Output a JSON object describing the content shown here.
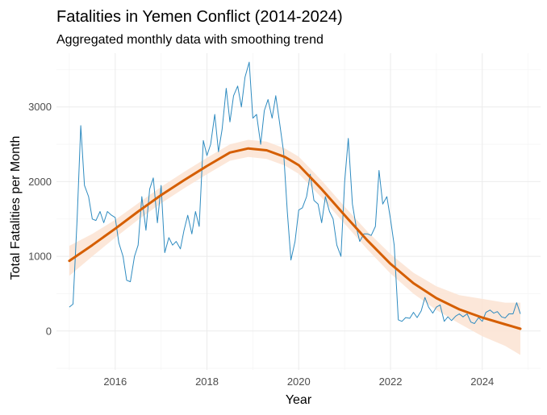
{
  "chart_data": {
    "type": "line",
    "title": "Fatalities in Yemen Conflict (2014-2024)",
    "subtitle": "Aggregated monthly data with smoothing trend",
    "xlabel": "Year",
    "ylabel": "Total Fatalities per Month",
    "xlim": [
      2014.72,
      2025.27
    ],
    "ylim": [
      -520,
      3720
    ],
    "x_ticks": [
      2016,
      2018,
      2020,
      2022,
      2024
    ],
    "y_ticks": [
      0,
      1000,
      2000,
      3000
    ],
    "grid": true,
    "colors": {
      "raw": "#2e8bc0",
      "trend": "#d55e00",
      "band": "#fbe3d2"
    },
    "series": [
      {
        "values": [
          [
            2015.0,
            320
          ],
          [
            2015.08,
            360
          ],
          [
            2015.17,
            1500
          ],
          [
            2015.25,
            2750
          ],
          [
            2015.33,
            1950
          ],
          [
            2015.42,
            1800
          ],
          [
            2015.5,
            1500
          ],
          [
            2015.58,
            1480
          ],
          [
            2015.67,
            1600
          ],
          [
            2015.75,
            1450
          ],
          [
            2015.83,
            1600
          ],
          [
            2015.92,
            1550
          ],
          [
            2016.0,
            1520
          ],
          [
            2016.08,
            1180
          ],
          [
            2016.17,
            1000
          ],
          [
            2016.25,
            680
          ],
          [
            2016.33,
            660
          ],
          [
            2016.42,
            1000
          ],
          [
            2016.5,
            1150
          ],
          [
            2016.58,
            1800
          ],
          [
            2016.67,
            1350
          ],
          [
            2016.75,
            1900
          ],
          [
            2016.83,
            2050
          ],
          [
            2016.92,
            1450
          ],
          [
            2017.0,
            1950
          ],
          [
            2017.08,
            1050
          ],
          [
            2017.17,
            1250
          ],
          [
            2017.25,
            1150
          ],
          [
            2017.33,
            1200
          ],
          [
            2017.42,
            1100
          ],
          [
            2017.5,
            1350
          ],
          [
            2017.58,
            1550
          ],
          [
            2017.67,
            1300
          ],
          [
            2017.75,
            1600
          ],
          [
            2017.83,
            1400
          ],
          [
            2017.92,
            2550
          ],
          [
            2018.0,
            2350
          ],
          [
            2018.08,
            2500
          ],
          [
            2018.17,
            2900
          ],
          [
            2018.25,
            2400
          ],
          [
            2018.33,
            2700
          ],
          [
            2018.42,
            3250
          ],
          [
            2018.5,
            2800
          ],
          [
            2018.58,
            3150
          ],
          [
            2018.67,
            3280
          ],
          [
            2018.75,
            3000
          ],
          [
            2018.83,
            3400
          ],
          [
            2018.92,
            3600
          ],
          [
            2019.0,
            2850
          ],
          [
            2019.08,
            2900
          ],
          [
            2019.17,
            2500
          ],
          [
            2019.25,
            2950
          ],
          [
            2019.33,
            3100
          ],
          [
            2019.42,
            2850
          ],
          [
            2019.5,
            3150
          ],
          [
            2019.58,
            2800
          ],
          [
            2019.67,
            2400
          ],
          [
            2019.75,
            1600
          ],
          [
            2019.83,
            950
          ],
          [
            2019.92,
            1200
          ],
          [
            2020.0,
            1620
          ],
          [
            2020.08,
            1650
          ],
          [
            2020.17,
            1800
          ],
          [
            2020.25,
            2100
          ],
          [
            2020.33,
            1750
          ],
          [
            2020.42,
            1700
          ],
          [
            2020.5,
            1450
          ],
          [
            2020.58,
            1800
          ],
          [
            2020.67,
            1600
          ],
          [
            2020.75,
            1500
          ],
          [
            2020.83,
            1150
          ],
          [
            2020.92,
            1000
          ],
          [
            2021.0,
            2000
          ],
          [
            2021.08,
            2580
          ],
          [
            2021.17,
            1700
          ],
          [
            2021.25,
            1400
          ],
          [
            2021.33,
            1200
          ],
          [
            2021.42,
            1300
          ],
          [
            2021.5,
            1300
          ],
          [
            2021.58,
            1280
          ],
          [
            2021.67,
            1400
          ],
          [
            2021.75,
            2150
          ],
          [
            2021.83,
            1700
          ],
          [
            2021.92,
            1800
          ],
          [
            2022.0,
            1500
          ],
          [
            2022.08,
            1150
          ],
          [
            2022.17,
            150
          ],
          [
            2022.25,
            130
          ],
          [
            2022.33,
            180
          ],
          [
            2022.42,
            170
          ],
          [
            2022.5,
            250
          ],
          [
            2022.58,
            180
          ],
          [
            2022.67,
            270
          ],
          [
            2022.75,
            450
          ],
          [
            2022.83,
            320
          ],
          [
            2022.92,
            240
          ],
          [
            2023.0,
            320
          ],
          [
            2023.08,
            350
          ],
          [
            2023.17,
            130
          ],
          [
            2023.25,
            190
          ],
          [
            2023.33,
            140
          ],
          [
            2023.42,
            200
          ],
          [
            2023.5,
            230
          ],
          [
            2023.58,
            190
          ],
          [
            2023.67,
            230
          ],
          [
            2023.75,
            120
          ],
          [
            2023.83,
            100
          ],
          [
            2023.92,
            180
          ],
          [
            2024.0,
            130
          ],
          [
            2024.08,
            250
          ],
          [
            2024.17,
            280
          ],
          [
            2024.25,
            240
          ],
          [
            2024.33,
            260
          ],
          [
            2024.42,
            190
          ],
          [
            2024.5,
            175
          ],
          [
            2024.58,
            230
          ],
          [
            2024.67,
            230
          ],
          [
            2024.75,
            380
          ],
          [
            2024.83,
            230
          ]
        ]
      },
      {
        "values": [
          [
            2015.0,
            940,
            740,
            1140
          ],
          [
            2015.5,
            1150,
            1000,
            1300
          ],
          [
            2016.0,
            1370,
            1250,
            1490
          ],
          [
            2016.5,
            1600,
            1490,
            1710
          ],
          [
            2017.0,
            1820,
            1710,
            1930
          ],
          [
            2017.5,
            2020,
            1910,
            2130
          ],
          [
            2018.0,
            2210,
            2100,
            2320
          ],
          [
            2018.5,
            2390,
            2280,
            2500
          ],
          [
            2018.9,
            2445,
            2330,
            2560
          ],
          [
            2019.3,
            2420,
            2305,
            2535
          ],
          [
            2019.7,
            2330,
            2215,
            2445
          ],
          [
            2020.0,
            2220,
            2105,
            2335
          ],
          [
            2020.5,
            1900,
            1785,
            2015
          ],
          [
            2021.0,
            1550,
            1435,
            1665
          ],
          [
            2021.5,
            1210,
            1090,
            1330
          ],
          [
            2022.0,
            900,
            770,
            1030
          ],
          [
            2022.5,
            640,
            500,
            780
          ],
          [
            2023.0,
            440,
            280,
            600
          ],
          [
            2023.5,
            290,
            100,
            480
          ],
          [
            2024.0,
            180,
            -70,
            430
          ],
          [
            2024.5,
            90,
            -200,
            380
          ],
          [
            2024.83,
            30,
            -320,
            380
          ]
        ]
      }
    ]
  }
}
